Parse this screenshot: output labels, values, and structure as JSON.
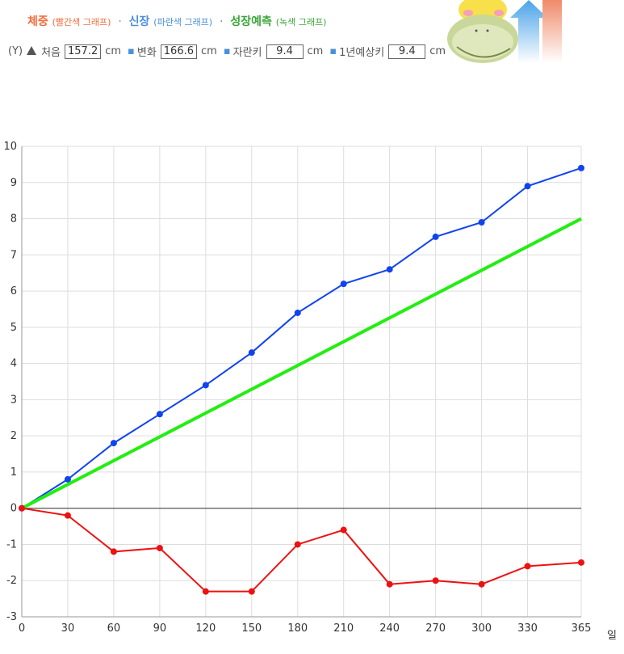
{
  "legend": {
    "weight": "체중",
    "weight_paren": "(빨간색 그래프)",
    "height": "신장",
    "height_paren": "(파란색 그래프)",
    "forecast": "성장예측",
    "forecast_paren": "(녹색 그래프)",
    "dot": "·"
  },
  "info": {
    "y_label": "(Y)",
    "start_label": "처음",
    "start_value": "157.2",
    "unit1": "cm",
    "change_label": "변화",
    "change_value": "166.6",
    "unit2": "cm",
    "growth_label": "자란키",
    "growth_value": "9.4",
    "unit3": "cm",
    "forecast_label": "1년예상키",
    "forecast_value": "9.4",
    "unit4": "cm"
  },
  "colors": {
    "weight": "#ee1111",
    "height": "#1144ee",
    "forecast": "#22ee11",
    "accent": "#4a90d9"
  },
  "icons": {
    "arrow": "arrow-up-icon",
    "mascot": "mascot-icon"
  },
  "chart_data": {
    "type": "line",
    "x_unit_label": "일",
    "x_ticks": [
      0,
      30,
      60,
      90,
      120,
      150,
      180,
      210,
      240,
      270,
      300,
      330,
      365
    ],
    "y_ticks": [
      -3,
      -2,
      -1,
      0,
      1,
      2,
      3,
      4,
      5,
      6,
      7,
      8,
      9,
      10
    ],
    "xlim": [
      0,
      365
    ],
    "ylim": [
      -3,
      10
    ],
    "grid": true,
    "series": [
      {
        "key": "height",
        "color": "#1144ee",
        "markers": true,
        "x": [
          0,
          30,
          60,
          90,
          120,
          150,
          180,
          210,
          240,
          270,
          300,
          330,
          365
        ],
        "y": [
          0,
          0.8,
          1.8,
          2.6,
          3.4,
          4.3,
          5.4,
          6.2,
          6.6,
          7.5,
          7.9,
          8.9,
          9.4
        ]
      },
      {
        "key": "forecast",
        "color": "#22ee11",
        "markers": false,
        "x": [
          0,
          365
        ],
        "y": [
          0,
          8.0
        ]
      },
      {
        "key": "weight",
        "color": "#ee1111",
        "markers": true,
        "x": [
          0,
          30,
          60,
          90,
          120,
          150,
          180,
          210,
          240,
          270,
          300,
          330,
          365
        ],
        "y": [
          0,
          -0.2,
          -1.2,
          -1.1,
          -2.3,
          -2.3,
          -1.0,
          -0.6,
          -2.1,
          -2.0,
          -2.1,
          -1.6,
          -1.5
        ]
      }
    ]
  }
}
